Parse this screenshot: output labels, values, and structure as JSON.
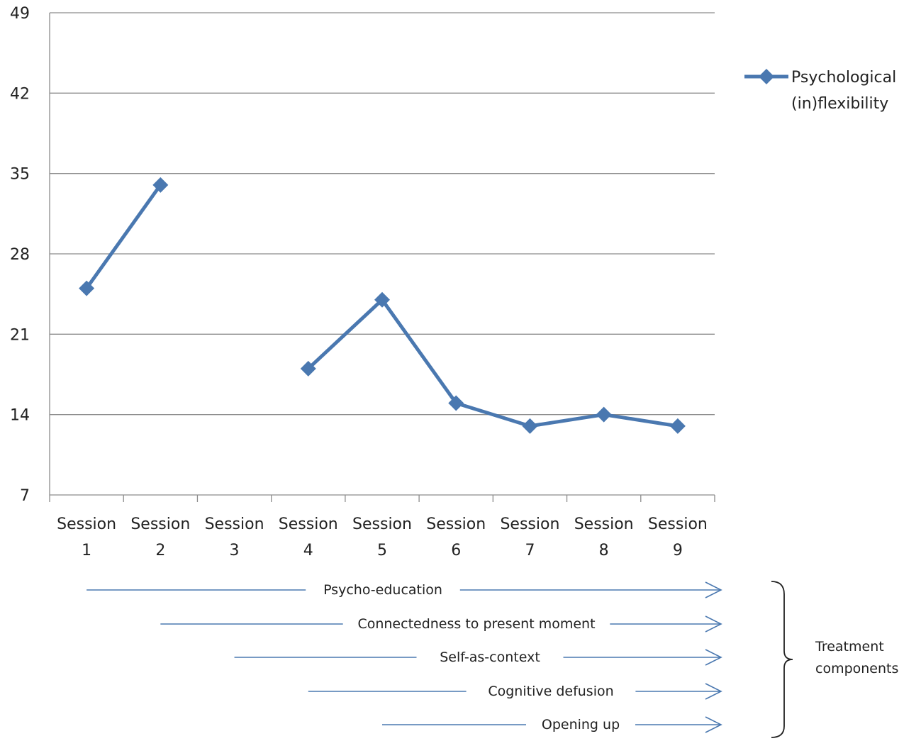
{
  "chart_data": {
    "type": "line",
    "categories": [
      "Session 1",
      "Session 2",
      "Session 3",
      "Session 4",
      "Session 5",
      "Session 6",
      "Session 7",
      "Session 8",
      "Session 9"
    ],
    "category_lines": [
      [
        "Session",
        "1"
      ],
      [
        "Session",
        "2"
      ],
      [
        "Session",
        "3"
      ],
      [
        "Session",
        "4"
      ],
      [
        "Session",
        "5"
      ],
      [
        "Session",
        "6"
      ],
      [
        "Session",
        "7"
      ],
      [
        "Session",
        "8"
      ],
      [
        "Session",
        "9"
      ]
    ],
    "series": [
      {
        "name": "Psychological (in)flexibility",
        "name_lines": [
          "Psychological",
          "(in)flexibility"
        ],
        "values": [
          25,
          34,
          null,
          18,
          24,
          15,
          13,
          14,
          13
        ],
        "color": "#4a78b0"
      }
    ],
    "ylim": [
      7,
      49
    ],
    "yticks": [
      "7",
      "14",
      "21",
      "28",
      "35",
      "42",
      "49"
    ],
    "grid": true,
    "legend_position": "right"
  },
  "treatment": {
    "label_lines": [
      "Treatment",
      "components"
    ],
    "components": [
      {
        "label": "Psycho-education",
        "start_session": 1
      },
      {
        "label": "Connectedness to present moment",
        "start_session": 2
      },
      {
        "label": "Self-as-context",
        "start_session": 3
      },
      {
        "label": "Cognitive defusion",
        "start_session": 4
      },
      {
        "label": "Opening up",
        "start_session": 5
      }
    ],
    "arrow_color": "#4a78b0"
  }
}
